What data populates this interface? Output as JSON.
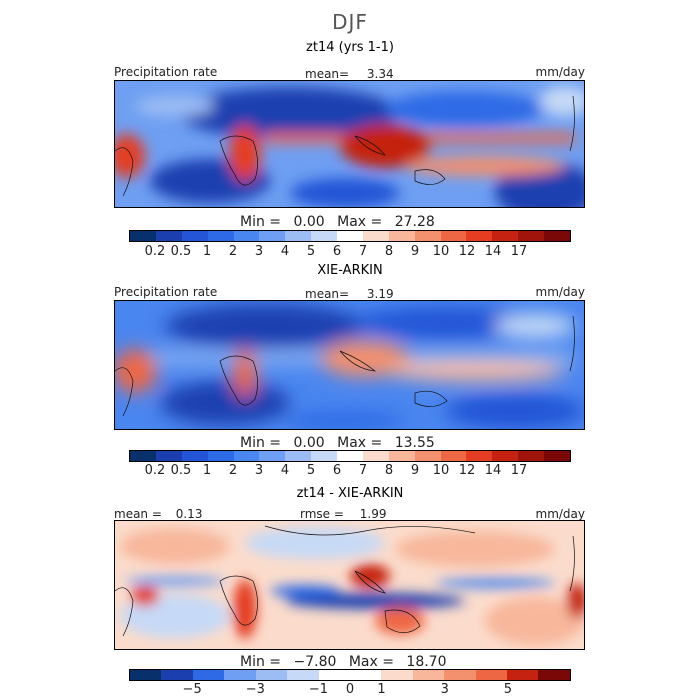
{
  "page": {
    "title": "DJF"
  },
  "palette": {
    "precip": [
      "#08306b",
      "#1c3fb0",
      "#2455d6",
      "#2f6ae6",
      "#4a86ef",
      "#6e9ff2",
      "#9cbdf4",
      "#c6d9f6",
      "#ffffff",
      "#fbdccc",
      "#f8b79b",
      "#f3906d",
      "#ee6744",
      "#e43d22",
      "#c52211",
      "#9f140b",
      "#7a0806"
    ],
    "diff": [
      "#08306b",
      "#1c3fb0",
      "#2f6ae6",
      "#6e9ff2",
      "#9cbdf4",
      "#c6d9f6",
      "#ffffff",
      "#ffffff",
      "#fbdccc",
      "#f8b79b",
      "#f3906d",
      "#ee6744",
      "#c52211",
      "#7a0806"
    ]
  },
  "chart_data": [
    {
      "type": "heatmap",
      "title": "zt14 (yrs 1-1)",
      "variable": "Precipitation rate",
      "units": "mm/day",
      "mean_label": "mean=",
      "mean": "3.34",
      "min_label": "Min =",
      "min": "0.00",
      "max_label": "Max =",
      "max": "27.28",
      "colorbar_ticks": [
        "0.2",
        "0.5",
        "1",
        "2",
        "3",
        "4",
        "5",
        "6",
        "7",
        "8",
        "9",
        "10",
        "12",
        "14",
        "17"
      ]
    },
    {
      "type": "heatmap",
      "title": "XIE-ARKIN",
      "variable": "Precipitation rate",
      "units": "mm/day",
      "mean_label": "mean=",
      "mean": "3.19",
      "min_label": "Min =",
      "min": "0.00",
      "max_label": "Max =",
      "max": "13.55",
      "colorbar_ticks": [
        "0.2",
        "0.5",
        "1",
        "2",
        "3",
        "4",
        "5",
        "6",
        "7",
        "8",
        "9",
        "10",
        "12",
        "14",
        "17"
      ]
    },
    {
      "type": "heatmap",
      "title": "zt14 - XIE-ARKIN",
      "units": "mm/day",
      "mean_label": "mean =",
      "mean": "0.13",
      "rmse_label": "rmse =",
      "rmse": "1.99",
      "min_label": "Min =",
      "min": "−7.80",
      "max_label": "Max =",
      "max": "18.70",
      "colorbar_ticks": [
        "−5",
        "−3",
        "−1",
        "0",
        "1",
        "3",
        "5"
      ]
    }
  ]
}
